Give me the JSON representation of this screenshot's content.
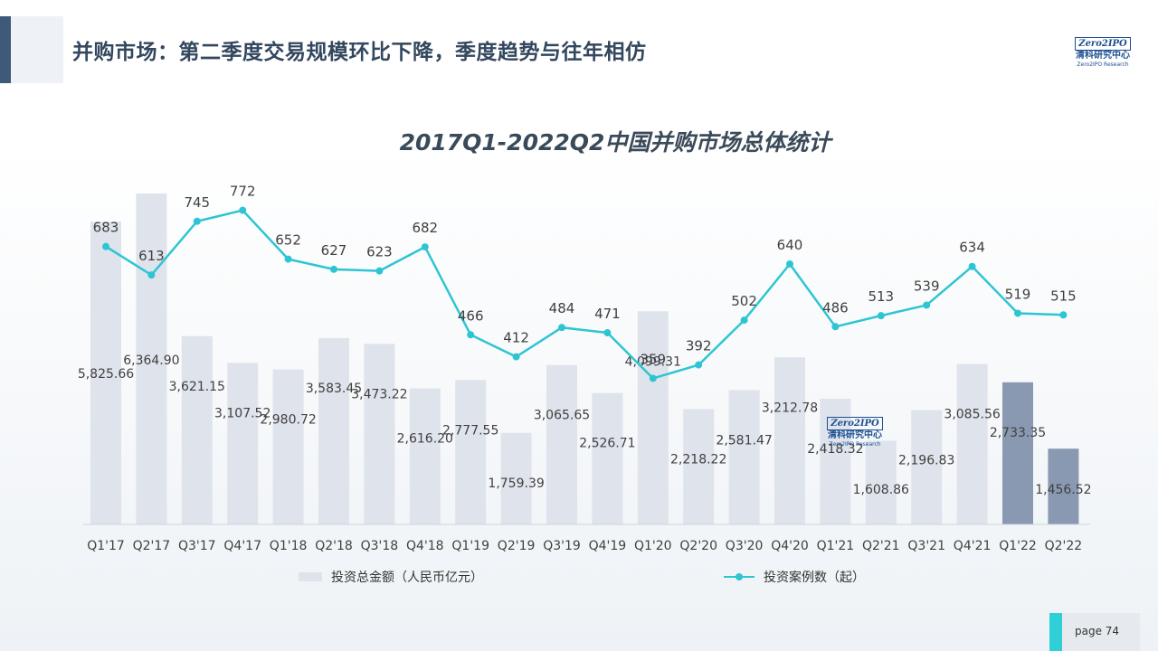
{
  "header": {
    "title": "并购市场：第二季度交易规模环比下降，季度趋势与往年相仿"
  },
  "logo": {
    "wordmark": "Zero2IPO",
    "cn": "清科研究中心",
    "en": "Zero2IPO Research"
  },
  "colors": {
    "bar": "#dfe3eb",
    "bar_highlight": "#8999b2",
    "line": "#2ec5d3",
    "title": "#33475e"
  },
  "chart_data": {
    "type": "bar",
    "title": "2017Q1-2022Q2中国并购市场总体统计",
    "categories": [
      "Q1'17",
      "Q2'17",
      "Q3'17",
      "Q4'17",
      "Q1'18",
      "Q2'18",
      "Q3'18",
      "Q4'18",
      "Q1'19",
      "Q2'19",
      "Q3'19",
      "Q4'19",
      "Q1'20",
      "Q2'20",
      "Q3'20",
      "Q4'20",
      "Q1'21",
      "Q2'21",
      "Q3'21",
      "Q4'21",
      "Q1'22",
      "Q2'22"
    ],
    "series": [
      {
        "name": "投资总金额（人民币亿元）",
        "type": "bar",
        "values": [
          5825.66,
          6364.9,
          3621.15,
          3107.52,
          2980.72,
          3583.45,
          3473.22,
          2616.2,
          2777.55,
          1759.39,
          3065.65,
          2526.71,
          4099.31,
          2218.22,
          2581.47,
          3212.78,
          2418.32,
          1608.86,
          2196.83,
          3085.56,
          2733.35,
          1456.52
        ],
        "labels": [
          "5,825.66",
          "6,364.90",
          "3,621.15",
          "3,107.52",
          "2,980.72",
          "3,583.45",
          "3,473.22",
          "2,616.20",
          "2,777.55",
          "1,759.39",
          "3,065.65",
          "2,526.71",
          "4,099.31",
          "2,218.22",
          "2,581.47",
          "3,212.78",
          "2,418.32",
          "1,608.86",
          "2,196.83",
          "3,085.56",
          "2,733.35",
          "1,456.52"
        ],
        "highlight_indices": [
          20,
          21
        ]
      },
      {
        "name": "投资案例数（起）",
        "type": "line",
        "values": [
          683,
          613,
          745,
          772,
          652,
          627,
          623,
          682,
          466,
          412,
          484,
          471,
          359,
          392,
          502,
          640,
          486,
          513,
          539,
          634,
          519,
          515
        ]
      }
    ],
    "legend_position": "bottom",
    "grid": false
  },
  "footer": {
    "page_label": "page  74"
  }
}
